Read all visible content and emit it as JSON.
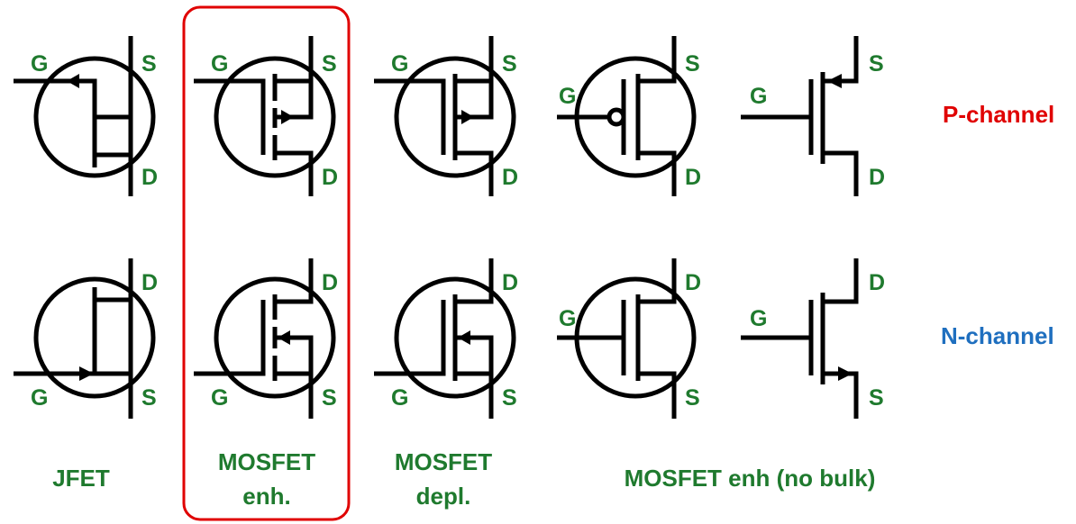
{
  "colors": {
    "pin_label": "#1f7a2e",
    "caption": "#1f7a2e",
    "p_channel": "#e00000",
    "n_channel": "#1f6fbf",
    "highlight_box": "#e00000",
    "wire": "#000000"
  },
  "rows": {
    "p": {
      "label": "P-channel"
    },
    "n": {
      "label": "N-channel"
    }
  },
  "columns": [
    {
      "id": "jfet",
      "caption_lines": [
        "JFET"
      ]
    },
    {
      "id": "mosfet-enh",
      "caption_lines": [
        "MOSFET",
        "enh."
      ],
      "highlighted": true
    },
    {
      "id": "mosfet-depl",
      "caption_lines": [
        "MOSFET",
        "depl."
      ]
    },
    {
      "id": "mosfet-enh-no-bulk",
      "caption_lines": [
        "MOSFET enh (no bulk)"
      ]
    }
  ],
  "pins": {
    "gate": "G",
    "source": "S",
    "drain": "D"
  }
}
